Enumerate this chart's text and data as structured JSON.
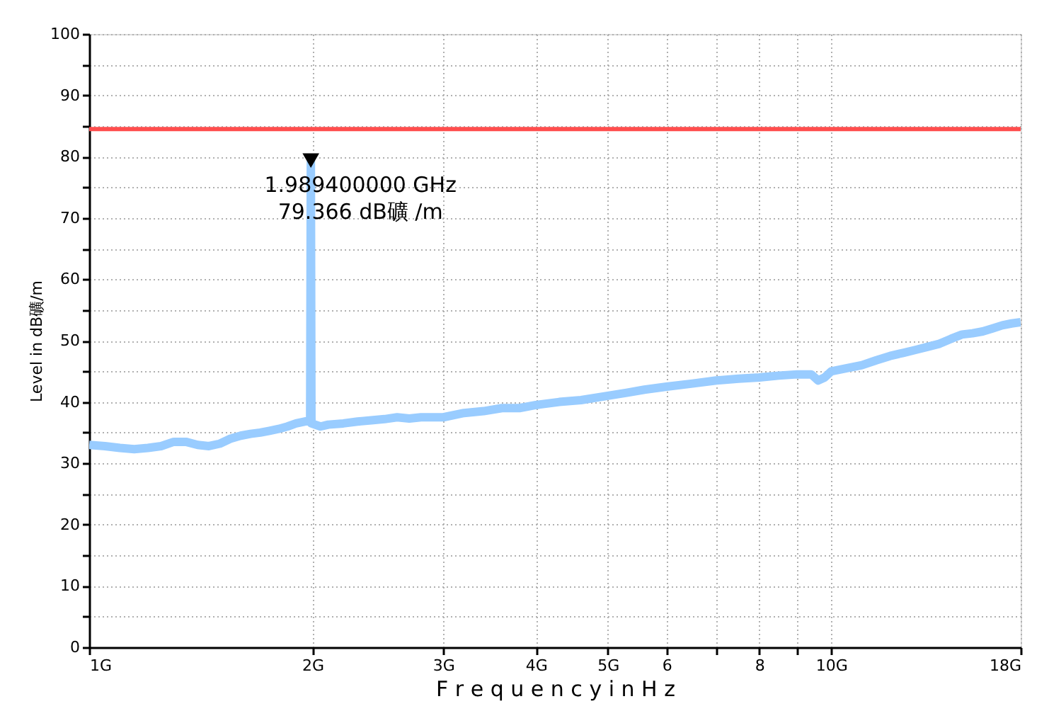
{
  "chart_data": {
    "type": "line",
    "xlabel": "F r e q u e n c y  i n  H z",
    "ylabel": "Level in dB礦/m",
    "log": "x",
    "grid": true,
    "xlim": [
      1,
      18
    ],
    "xticks": [
      {
        "value": 1,
        "label": "1G"
      },
      {
        "value": 2,
        "label": "2G"
      },
      {
        "value": 3,
        "label": "3G"
      },
      {
        "value": 4,
        "label": "4G"
      },
      {
        "value": 5,
        "label": "5G"
      },
      6,
      {
        "value": 7,
        "label": null
      },
      8,
      {
        "value": 9,
        "label": null
      },
      {
        "value": 10,
        "label": "10G"
      },
      {
        "value": 18,
        "label": "18G"
      }
    ],
    "ylim": [
      0,
      100
    ],
    "yticks": [
      0,
      {
        "value": 5,
        "label": null
      },
      10,
      {
        "value": 15,
        "label": null
      },
      20,
      {
        "value": 25,
        "label": null
      },
      30,
      {
        "value": 35,
        "label": null
      },
      40,
      {
        "value": 45,
        "label": null
      },
      50,
      {
        "value": 55,
        "label": null
      },
      60,
      {
        "value": 65,
        "label": null
      },
      70,
      {
        "value": 75,
        "label": null
      },
      80,
      {
        "value": 85,
        "label": null
      },
      90,
      {
        "value": 95,
        "label": null
      },
      100
    ],
    "series": [
      {
        "color": "#99ccff",
        "x": [
          1.0,
          1.05,
          1.1,
          1.15,
          1.2,
          1.25,
          1.3,
          1.35,
          1.4,
          1.45,
          1.5,
          1.55,
          1.6,
          1.65,
          1.7,
          1.75,
          1.8,
          1.85,
          1.9,
          1.95,
          1.985,
          1.9894,
          1.993,
          2.05,
          2.1,
          2.2,
          2.3,
          2.4,
          2.5,
          2.6,
          2.7,
          2.8,
          3.0,
          3.2,
          3.4,
          3.6,
          3.8,
          4.0,
          4.3,
          4.6,
          5.0,
          5.3,
          5.6,
          6.0,
          6.5,
          7.0,
          7.5,
          8.0,
          8.5,
          9.0,
          9.4,
          9.6,
          9.8,
          10.0,
          10.5,
          11.0,
          11.5,
          12.0,
          12.5,
          13.0,
          13.5,
          14.0,
          14.5,
          15.0,
          15.5,
          16.0,
          16.5,
          17.0,
          17.5,
          18.0
        ],
        "values": [
          33.0,
          32.8,
          32.5,
          32.3,
          32.5,
          32.8,
          33.5,
          33.5,
          33.0,
          32.8,
          33.2,
          34.0,
          34.5,
          34.8,
          35.0,
          35.3,
          35.6,
          36.0,
          36.5,
          36.8,
          37.0,
          79.366,
          36.5,
          36.0,
          36.3,
          36.5,
          36.8,
          37.0,
          37.2,
          37.5,
          37.3,
          37.5,
          37.5,
          38.2,
          38.5,
          39.0,
          39.0,
          39.5,
          40.0,
          40.3,
          41.0,
          41.5,
          42.0,
          42.5,
          43.0,
          43.5,
          43.8,
          44.0,
          44.3,
          44.5,
          44.5,
          43.5,
          44.0,
          45.0,
          45.5,
          46.0,
          46.8,
          47.5,
          48.0,
          48.5,
          49.0,
          49.5,
          50.3,
          51.0,
          51.2,
          51.5,
          52.0,
          52.5,
          52.8,
          53.0
        ]
      },
      {
        "type": "scatter",
        "color": "#000000",
        "marker": "triangle",
        "x": [
          1.9894
        ],
        "values": [
          79.366
        ]
      }
    ],
    "ref_lines": [
      {
        "axis": "y",
        "value": 84.5,
        "label": null,
        "color": "#ff4d4d"
      }
    ],
    "annotations": [
      {
        "text": "1.989400000 GHz",
        "x": 1.9894,
        "y": 79.366
      },
      {
        "text": "79.366 dB礦 /m",
        "x": 1.9894,
        "y": 79.366
      }
    ]
  }
}
